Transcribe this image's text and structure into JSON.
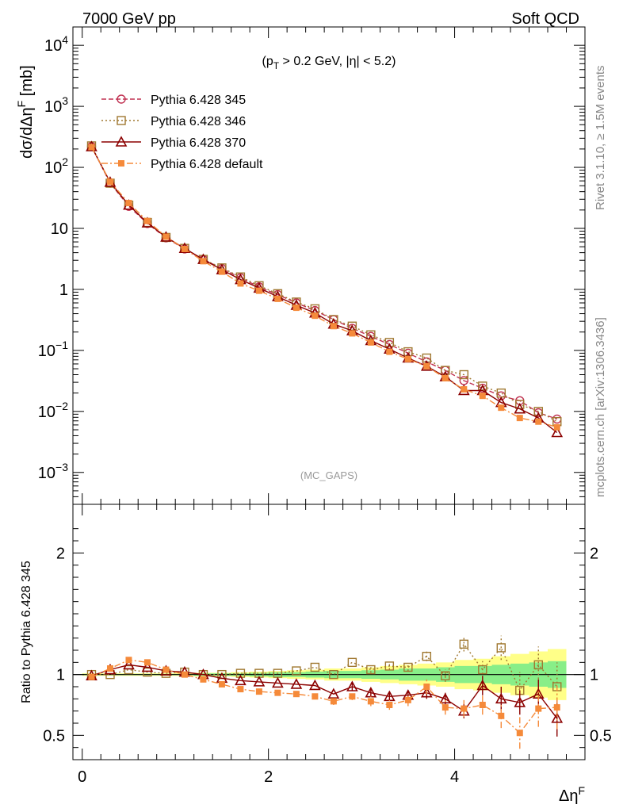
{
  "header": {
    "left": "7000 GeV pp",
    "right": "Soft QCD"
  },
  "side_labels": {
    "rivet": "Rivet 3.1.10, ≥ 1.5M events",
    "source": "mcplots.cern.ch [arXiv:1306.3436]"
  },
  "chart_data": [
    {
      "type": "line",
      "title": "",
      "cut_label": "(p_T > 0.2 GeV, |η| < 5.2)",
      "analysis_tag": "(MC_GAPS)",
      "xlabel": "Δη^F",
      "ylabel": "dσ/dΔη^F [mb]",
      "yscale": "log",
      "xlim": [
        -0.1,
        5.4
      ],
      "ylim": [
        0.0003,
        20000
      ],
      "x_ticks": [
        "0",
        "2",
        "4"
      ],
      "y_ticks": [
        "10^4",
        "10^3",
        "10^2",
        "10",
        "1",
        "10^-1",
        "10^-2",
        "10^-3"
      ],
      "x": [
        0.1,
        0.3,
        0.5,
        0.7,
        0.9,
        1.1,
        1.3,
        1.5,
        1.7,
        1.9,
        2.1,
        2.3,
        2.5,
        2.7,
        2.9,
        3.1,
        3.3,
        3.5,
        3.7,
        3.9,
        4.1,
        4.3,
        4.5,
        4.7,
        4.9,
        5.1
      ],
      "series": [
        {
          "name": "Pythia 6.428 345",
          "color": "#c03050",
          "marker": "circle-open",
          "dash": "6,3",
          "values": [
            220,
            55,
            23,
            12,
            7,
            4.6,
            3.1,
            2.2,
            1.55,
            1.1,
            0.82,
            0.6,
            0.45,
            0.32,
            0.23,
            0.17,
            0.125,
            0.09,
            0.065,
            0.047,
            0.032,
            0.024,
            0.018,
            0.015,
            0.0095,
            0.0075
          ]
        },
        {
          "name": "Pythia 6.428 346",
          "color": "#a07830",
          "marker": "square-open",
          "dash": "2,3",
          "values": [
            225,
            55,
            24,
            12.5,
            7.1,
            4.7,
            3.1,
            2.25,
            1.6,
            1.15,
            0.85,
            0.62,
            0.48,
            0.32,
            0.25,
            0.18,
            0.135,
            0.095,
            0.075,
            0.047,
            0.04,
            0.026,
            0.02,
            0.013,
            0.01,
            0.0068
          ]
        },
        {
          "name": "Pythia 6.428 370",
          "color": "#8b0000",
          "marker": "triangle-open",
          "dash": "",
          "values": [
            218,
            57,
            24,
            12.3,
            7.2,
            4.7,
            3.1,
            2.1,
            1.45,
            1.05,
            0.76,
            0.55,
            0.41,
            0.27,
            0.21,
            0.145,
            0.105,
            0.075,
            0.055,
            0.037,
            0.022,
            0.022,
            0.014,
            0.011,
            0.0078,
            0.0045
          ]
        },
        {
          "name": "Pythia 6.428 default",
          "color": "#f58a3a",
          "marker": "square-filled",
          "dash": "8,3,2,3",
          "values": [
            215,
            58,
            26,
            13.2,
            7.3,
            4.6,
            2.9,
            1.95,
            1.25,
            0.95,
            0.7,
            0.5,
            0.37,
            0.25,
            0.19,
            0.135,
            0.095,
            0.072,
            0.055,
            0.035,
            0.023,
            0.018,
            0.0115,
            0.0078,
            0.0068,
            0.0055
          ]
        }
      ]
    },
    {
      "type": "line",
      "title": "",
      "ylabel": "Ratio to Pythia 6.428 345",
      "xlabel": "Δη^F",
      "ylim": [
        0.3,
        2.4
      ],
      "y_ticks": [
        "2",
        "1",
        "0.5"
      ],
      "x": [
        0.1,
        0.3,
        0.5,
        0.7,
        0.9,
        1.1,
        1.3,
        1.5,
        1.7,
        1.9,
        2.1,
        2.3,
        2.5,
        2.7,
        2.9,
        3.1,
        3.3,
        3.5,
        3.7,
        3.9,
        4.1,
        4.3,
        4.5,
        4.7,
        4.9,
        5.1
      ],
      "reference_band": {
        "green_half_width": [
          0.005,
          0.005,
          0.005,
          0.005,
          0.005,
          0.005,
          0.01,
          0.01,
          0.01,
          0.015,
          0.02,
          0.02,
          0.025,
          0.03,
          0.03,
          0.035,
          0.04,
          0.05,
          0.05,
          0.06,
          0.07,
          0.07,
          0.08,
          0.09,
          0.1,
          0.11
        ],
        "yellow_half_width": [
          0.01,
          0.01,
          0.01,
          0.01,
          0.01,
          0.01,
          0.015,
          0.015,
          0.02,
          0.025,
          0.03,
          0.035,
          0.04,
          0.05,
          0.05,
          0.06,
          0.07,
          0.08,
          0.09,
          0.1,
          0.12,
          0.13,
          0.15,
          0.17,
          0.19,
          0.21
        ]
      },
      "series": [
        {
          "name": "Pythia 6.428 346",
          "color": "#a07830",
          "marker": "square-open",
          "dash": "2,3",
          "values": [
            1.0,
            1.0,
            1.04,
            1.02,
            1.01,
            1.02,
            1.0,
            1.0,
            1.01,
            1.01,
            1.01,
            1.03,
            1.06,
            1.0,
            1.1,
            1.04,
            1.07,
            1.06,
            1.15,
            0.99,
            1.25,
            1.04,
            1.22,
            0.87,
            1.08,
            0.9
          ],
          "errors": [
            0.005,
            0.005,
            0.005,
            0.005,
            0.005,
            0.005,
            0.01,
            0.01,
            0.01,
            0.01,
            0.01,
            0.015,
            0.02,
            0.02,
            0.02,
            0.025,
            0.03,
            0.03,
            0.04,
            0.05,
            0.06,
            0.07,
            0.1,
            0.15,
            0.15,
            0.2
          ]
        },
        {
          "name": "Pythia 6.428 370",
          "color": "#8b0000",
          "marker": "triangle-open",
          "dash": "",
          "values": [
            0.99,
            1.04,
            1.08,
            1.06,
            1.03,
            1.02,
            1.0,
            0.97,
            0.95,
            0.94,
            0.93,
            0.92,
            0.91,
            0.84,
            0.9,
            0.85,
            0.82,
            0.83,
            0.85,
            0.8,
            0.7,
            0.91,
            0.8,
            0.77,
            0.84,
            0.64
          ],
          "errors": [
            0.005,
            0.005,
            0.01,
            0.01,
            0.01,
            0.01,
            0.01,
            0.01,
            0.015,
            0.015,
            0.015,
            0.02,
            0.02,
            0.02,
            0.03,
            0.03,
            0.035,
            0.04,
            0.05,
            0.05,
            0.06,
            0.08,
            0.1,
            0.1,
            0.12,
            0.15
          ]
        },
        {
          "name": "Pythia 6.428 default",
          "color": "#f58a3a",
          "marker": "square-filled",
          "dash": "8,3,2,3",
          "values": [
            0.98,
            1.05,
            1.12,
            1.1,
            1.04,
            1.0,
            0.96,
            0.92,
            0.88,
            0.86,
            0.85,
            0.84,
            0.82,
            0.78,
            0.82,
            0.78,
            0.75,
            0.79,
            0.9,
            0.73,
            0.72,
            0.75,
            0.66,
            0.52,
            0.72,
            0.73
          ],
          "errors": [
            0.005,
            0.01,
            0.01,
            0.01,
            0.01,
            0.01,
            0.01,
            0.01,
            0.015,
            0.015,
            0.015,
            0.02,
            0.02,
            0.03,
            0.03,
            0.04,
            0.04,
            0.05,
            0.06,
            0.06,
            0.07,
            0.08,
            0.1,
            0.13,
            0.15,
            0.18
          ]
        }
      ]
    }
  ]
}
